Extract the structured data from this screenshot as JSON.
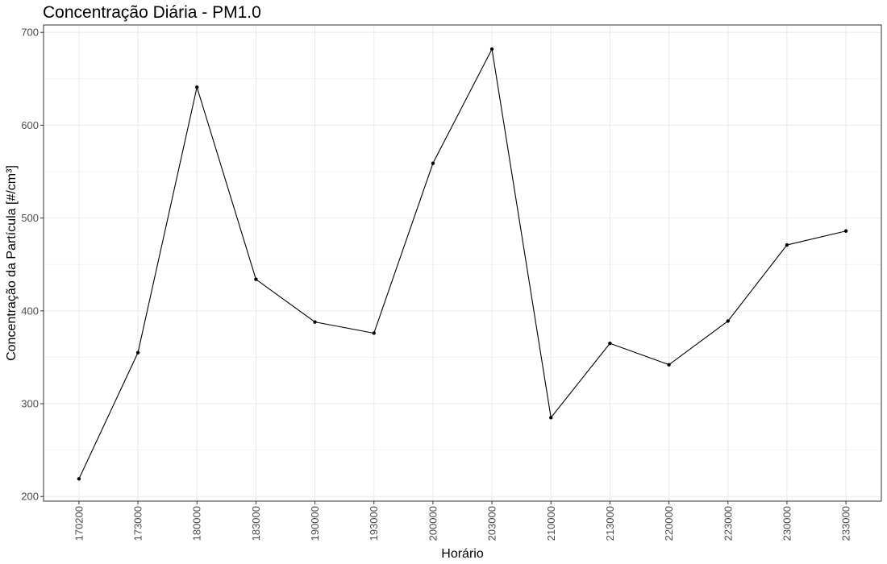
{
  "chart_data": {
    "type": "line",
    "title": "Concentração Diária - PM1.0",
    "xlabel": "Horário",
    "ylabel": "Concentração da Partícula [#/cm³]",
    "categories": [
      "170200",
      "173000",
      "180000",
      "183000",
      "190000",
      "193000",
      "200000",
      "203000",
      "210000",
      "213000",
      "220000",
      "223000",
      "230000",
      "233000"
    ],
    "values": [
      219,
      355,
      641,
      434,
      388,
      376,
      559,
      682,
      285,
      365,
      342,
      389,
      471,
      486
    ],
    "ylim": [
      195,
      708
    ],
    "yticks": [
      200,
      300,
      400,
      500,
      600,
      700
    ],
    "grid": true,
    "legend": "none",
    "colors": {
      "line": "#000000",
      "grid": "#ebebeb",
      "border": "#333333",
      "tick_text": "#4d4d4d"
    }
  }
}
